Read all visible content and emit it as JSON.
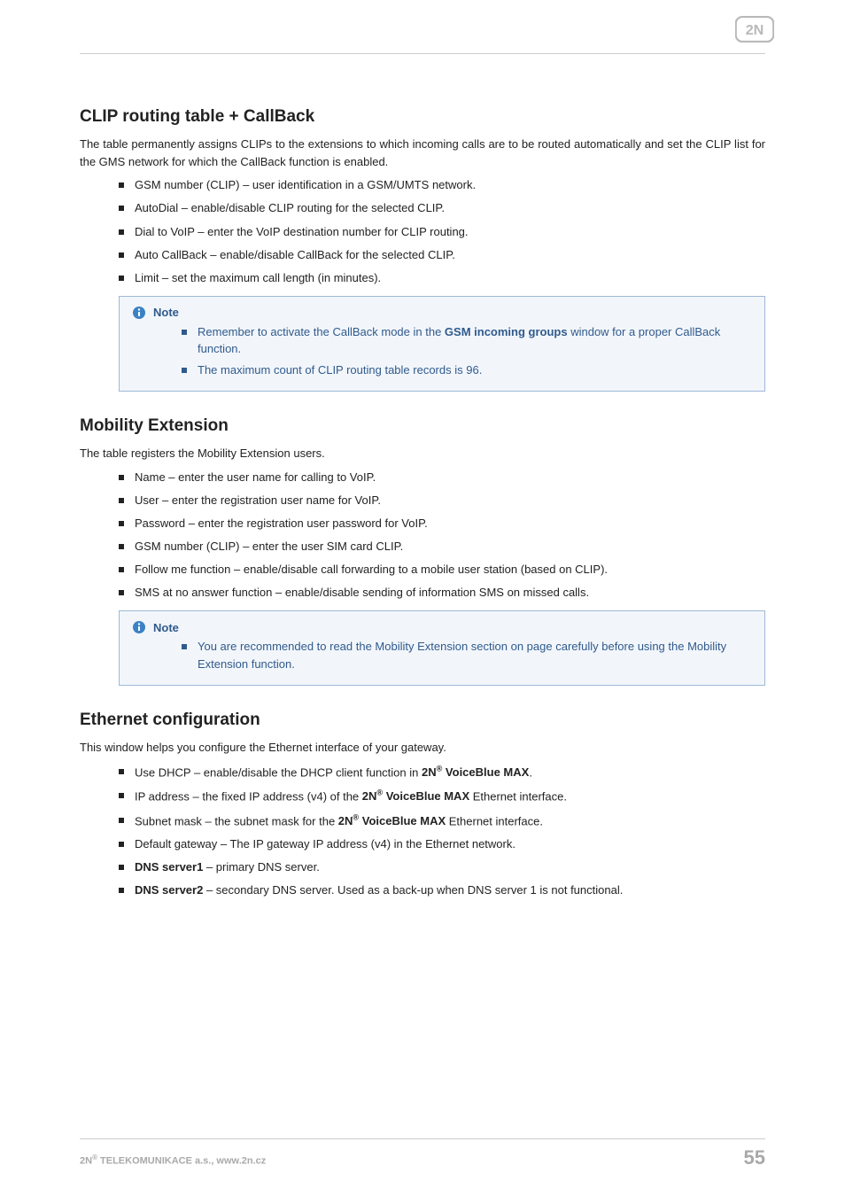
{
  "brand": "2N",
  "colors": {
    "text": "#222222",
    "note_border": "#9fb8d8",
    "note_bg": "#f2f6fb",
    "note_text": "#305a8c",
    "footer_text": "#a9a9a9",
    "rule": "#cccccc",
    "logo": "#b9b9b9"
  },
  "sections": {
    "clip": {
      "title": "CLIP routing table + CallBack",
      "intro": "The table permanently assigns CLIPs to the extensions to which incoming calls are to be routed automatically and set the CLIP list for the GMS network for which the CallBack function is enabled.",
      "items": [
        "GSM number (CLIP) – user identification in a GSM/UMTS network.",
        "AutoDial – enable/disable CLIP routing for the selected CLIP.",
        "Dial to VoIP – enter the VoIP destination number for CLIP routing.",
        "Auto CallBack – enable/disable CallBack for the selected CLIP.",
        "Limit – set the maximum call length (in minutes)."
      ],
      "note": {
        "label": "Note",
        "items_html": [
          "Remember to activate the CallBack mode in the <b>GSM incoming groups</b> window for a proper CallBack function.",
          "The maximum count of CLIP routing table records is 96."
        ]
      }
    },
    "mobility": {
      "title": "Mobility Extension",
      "intro": "The table registers the Mobility Extension users.",
      "items": [
        "Name – enter the user name for calling to VoIP.",
        "User – enter the registration user name for VoIP.",
        "Password – enter the registration user password for VoIP.",
        "GSM number (CLIP) – enter the user SIM card CLIP.",
        "Follow me function – enable/disable call forwarding to a mobile user station (based on CLIP).",
        "SMS at no answer function – enable/disable sending of information SMS on missed calls."
      ],
      "note": {
        "label": "Note",
        "items_html": [
          "You are recommended to read the Mobility Extension section on page carefully before using the Mobility Extension function."
        ]
      }
    },
    "ethernet": {
      "title": "Ethernet configuration",
      "intro": "This window helps you configure the Ethernet interface of your gateway.",
      "items_html": [
        "Use DHCP – enable/disable the DHCP client function in <b>2N<sup class=\"reg\">®</sup> VoiceBlue MAX</b>.",
        "IP address – the fixed IP address (v4) of the <b>2N<sup class=\"reg\">®</sup> VoiceBlue MAX</b> Ethernet interface.",
        "Subnet mask – the subnet mask for the <b>2N<sup class=\"reg\">®</sup> VoiceBlue MAX</b> Ethernet interface.",
        "Default gateway – The IP gateway IP address (v4) in the Ethernet network.",
        "<b>DNS server1</b> – primary DNS server.",
        "<b>DNS server2</b> – secondary DNS server. Used as a back-up when DNS server 1 is not functional."
      ]
    }
  },
  "footer": {
    "left_html": "2N<sup>®</sup> TELEKOMUNIKACE a.s., www.2n.cz",
    "page": "55"
  }
}
